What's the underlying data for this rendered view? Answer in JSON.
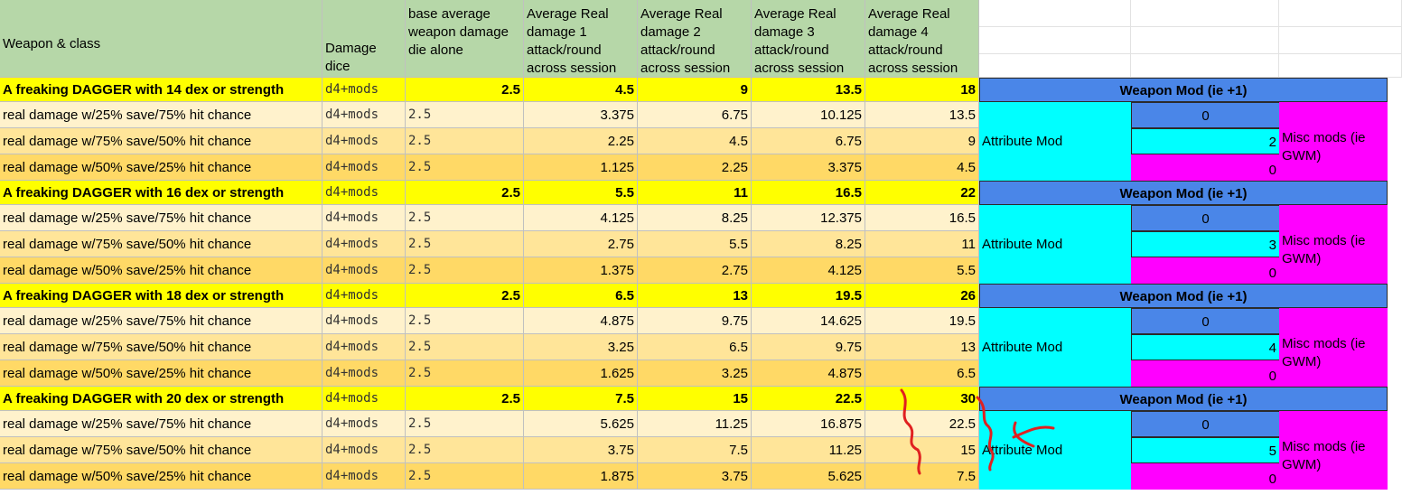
{
  "headers": {
    "weapon_class": "Weapon & class",
    "damage_dice": "Damage dice",
    "base_avg": "base average weapon damage die alone",
    "avg1": "Average Real damage 1 attack/round across session",
    "avg2": "Average Real damage 2 attack/round across session",
    "avg3": "Average Real damage 3 attack/round across session",
    "avg4": "Average Real damage 4 attack/round across session"
  },
  "groups": [
    {
      "rows": [
        {
          "label": "A freaking DAGGER with 14 dex or strength",
          "dice": "d4+mods",
          "base": "2.5",
          "a1": "4.5",
          "a2": "9",
          "a3": "13.5",
          "a4": "18"
        },
        {
          "label": "real damage w/25% save/75% hit chance",
          "dice": "d4+mods",
          "base": "2.5",
          "a1": "3.375",
          "a2": "6.75",
          "a3": "10.125",
          "a4": "13.5"
        },
        {
          "label": "real damage w/75% save/50% hit chance",
          "dice": "d4+mods",
          "base": "2.5",
          "a1": "2.25",
          "a2": "4.5",
          "a3": "6.75",
          "a4": "9"
        },
        {
          "label": "real damage w/50% save/25% hit chance",
          "dice": "d4+mods",
          "base": "2.5",
          "a1": "1.125",
          "a2": "2.25",
          "a3": "3.375",
          "a4": "4.5"
        }
      ],
      "weapon_mod_label": "Weapon Mod (ie +1)",
      "weapon_mod": "0",
      "attribute_label": "Attribute Mod",
      "attribute_mod": "2",
      "misc_label": "Misc mods (ie GWM)",
      "misc_mod": "0"
    },
    {
      "rows": [
        {
          "label": "A freaking DAGGER with 16 dex or strength",
          "dice": "d4+mods",
          "base": "2.5",
          "a1": "5.5",
          "a2": "11",
          "a3": "16.5",
          "a4": "22"
        },
        {
          "label": "real damage w/25% save/75% hit chance",
          "dice": "d4+mods",
          "base": "2.5",
          "a1": "4.125",
          "a2": "8.25",
          "a3": "12.375",
          "a4": "16.5"
        },
        {
          "label": "real damage w/75% save/50% hit chance",
          "dice": "d4+mods",
          "base": "2.5",
          "a1": "2.75",
          "a2": "5.5",
          "a3": "8.25",
          "a4": "11"
        },
        {
          "label": "real damage w/50% save/25% hit chance",
          "dice": "d4+mods",
          "base": "2.5",
          "a1": "1.375",
          "a2": "2.75",
          "a3": "4.125",
          "a4": "5.5"
        }
      ],
      "weapon_mod_label": "Weapon Mod (ie +1)",
      "weapon_mod": "0",
      "attribute_label": "Attribute Mod",
      "attribute_mod": "3",
      "misc_label": "Misc mods (ie GWM)",
      "misc_mod": "0"
    },
    {
      "rows": [
        {
          "label": "A freaking DAGGER with 18 dex or strength",
          "dice": "d4+mods",
          "base": "2.5",
          "a1": "6.5",
          "a2": "13",
          "a3": "19.5",
          "a4": "26"
        },
        {
          "label": "real damage w/25% save/75% hit chance",
          "dice": "d4+mods",
          "base": "2.5",
          "a1": "4.875",
          "a2": "9.75",
          "a3": "14.625",
          "a4": "19.5"
        },
        {
          "label": "real damage w/75% save/50% hit chance",
          "dice": "d4+mods",
          "base": "2.5",
          "a1": "3.25",
          "a2": "6.5",
          "a3": "9.75",
          "a4": "13"
        },
        {
          "label": "real damage w/50% save/25% hit chance",
          "dice": "d4+mods",
          "base": "2.5",
          "a1": "1.625",
          "a2": "3.25",
          "a3": "4.875",
          "a4": "6.5"
        }
      ],
      "weapon_mod_label": "Weapon Mod (ie +1)",
      "weapon_mod": "0",
      "attribute_label": "Attribute Mod",
      "attribute_mod": "4",
      "misc_label": "Misc mods (ie GWM)",
      "misc_mod": "0"
    },
    {
      "rows": [
        {
          "label": "A freaking DAGGER with 20 dex or strength",
          "dice": "d4+mods",
          "base": "2.5",
          "a1": "7.5",
          "a2": "15",
          "a3": "22.5",
          "a4": "30"
        },
        {
          "label": "real damage w/25% save/75% hit chance",
          "dice": "d4+mods",
          "base": "2.5",
          "a1": "5.625",
          "a2": "11.25",
          "a3": "16.875",
          "a4": "22.5"
        },
        {
          "label": "real damage w/75% save/50% hit chance",
          "dice": "d4+mods",
          "base": "2.5",
          "a1": "3.75",
          "a2": "7.5",
          "a3": "11.25",
          "a4": "15"
        },
        {
          "label": "real damage w/50% save/25% hit chance",
          "dice": "d4+mods",
          "base": "2.5",
          "a1": "1.875",
          "a2": "3.75",
          "a3": "5.625",
          "a4": "7.5"
        }
      ],
      "weapon_mod_label": "Weapon Mod (ie +1)",
      "weapon_mod": "0",
      "attribute_label": "Attribute Mod",
      "attribute_mod": "5",
      "misc_label": "Misc mods (ie GWM)",
      "misc_mod": "0"
    }
  ],
  "colors": {
    "header_green": "#b6d7a8",
    "main_yellow": "#ffff00",
    "row_light": "#fff2cc",
    "row_mid": "#ffe599",
    "row_dark": "#ffd966",
    "weapon_blue": "#4a86e8",
    "attribute_cyan": "#00ffff",
    "misc_magenta": "#ff00ff",
    "annotation_red": "#e02020"
  },
  "annotation": {
    "type": "hand-drawn red brackets and arrow",
    "icon": "red-bracket-arrow-icon"
  }
}
